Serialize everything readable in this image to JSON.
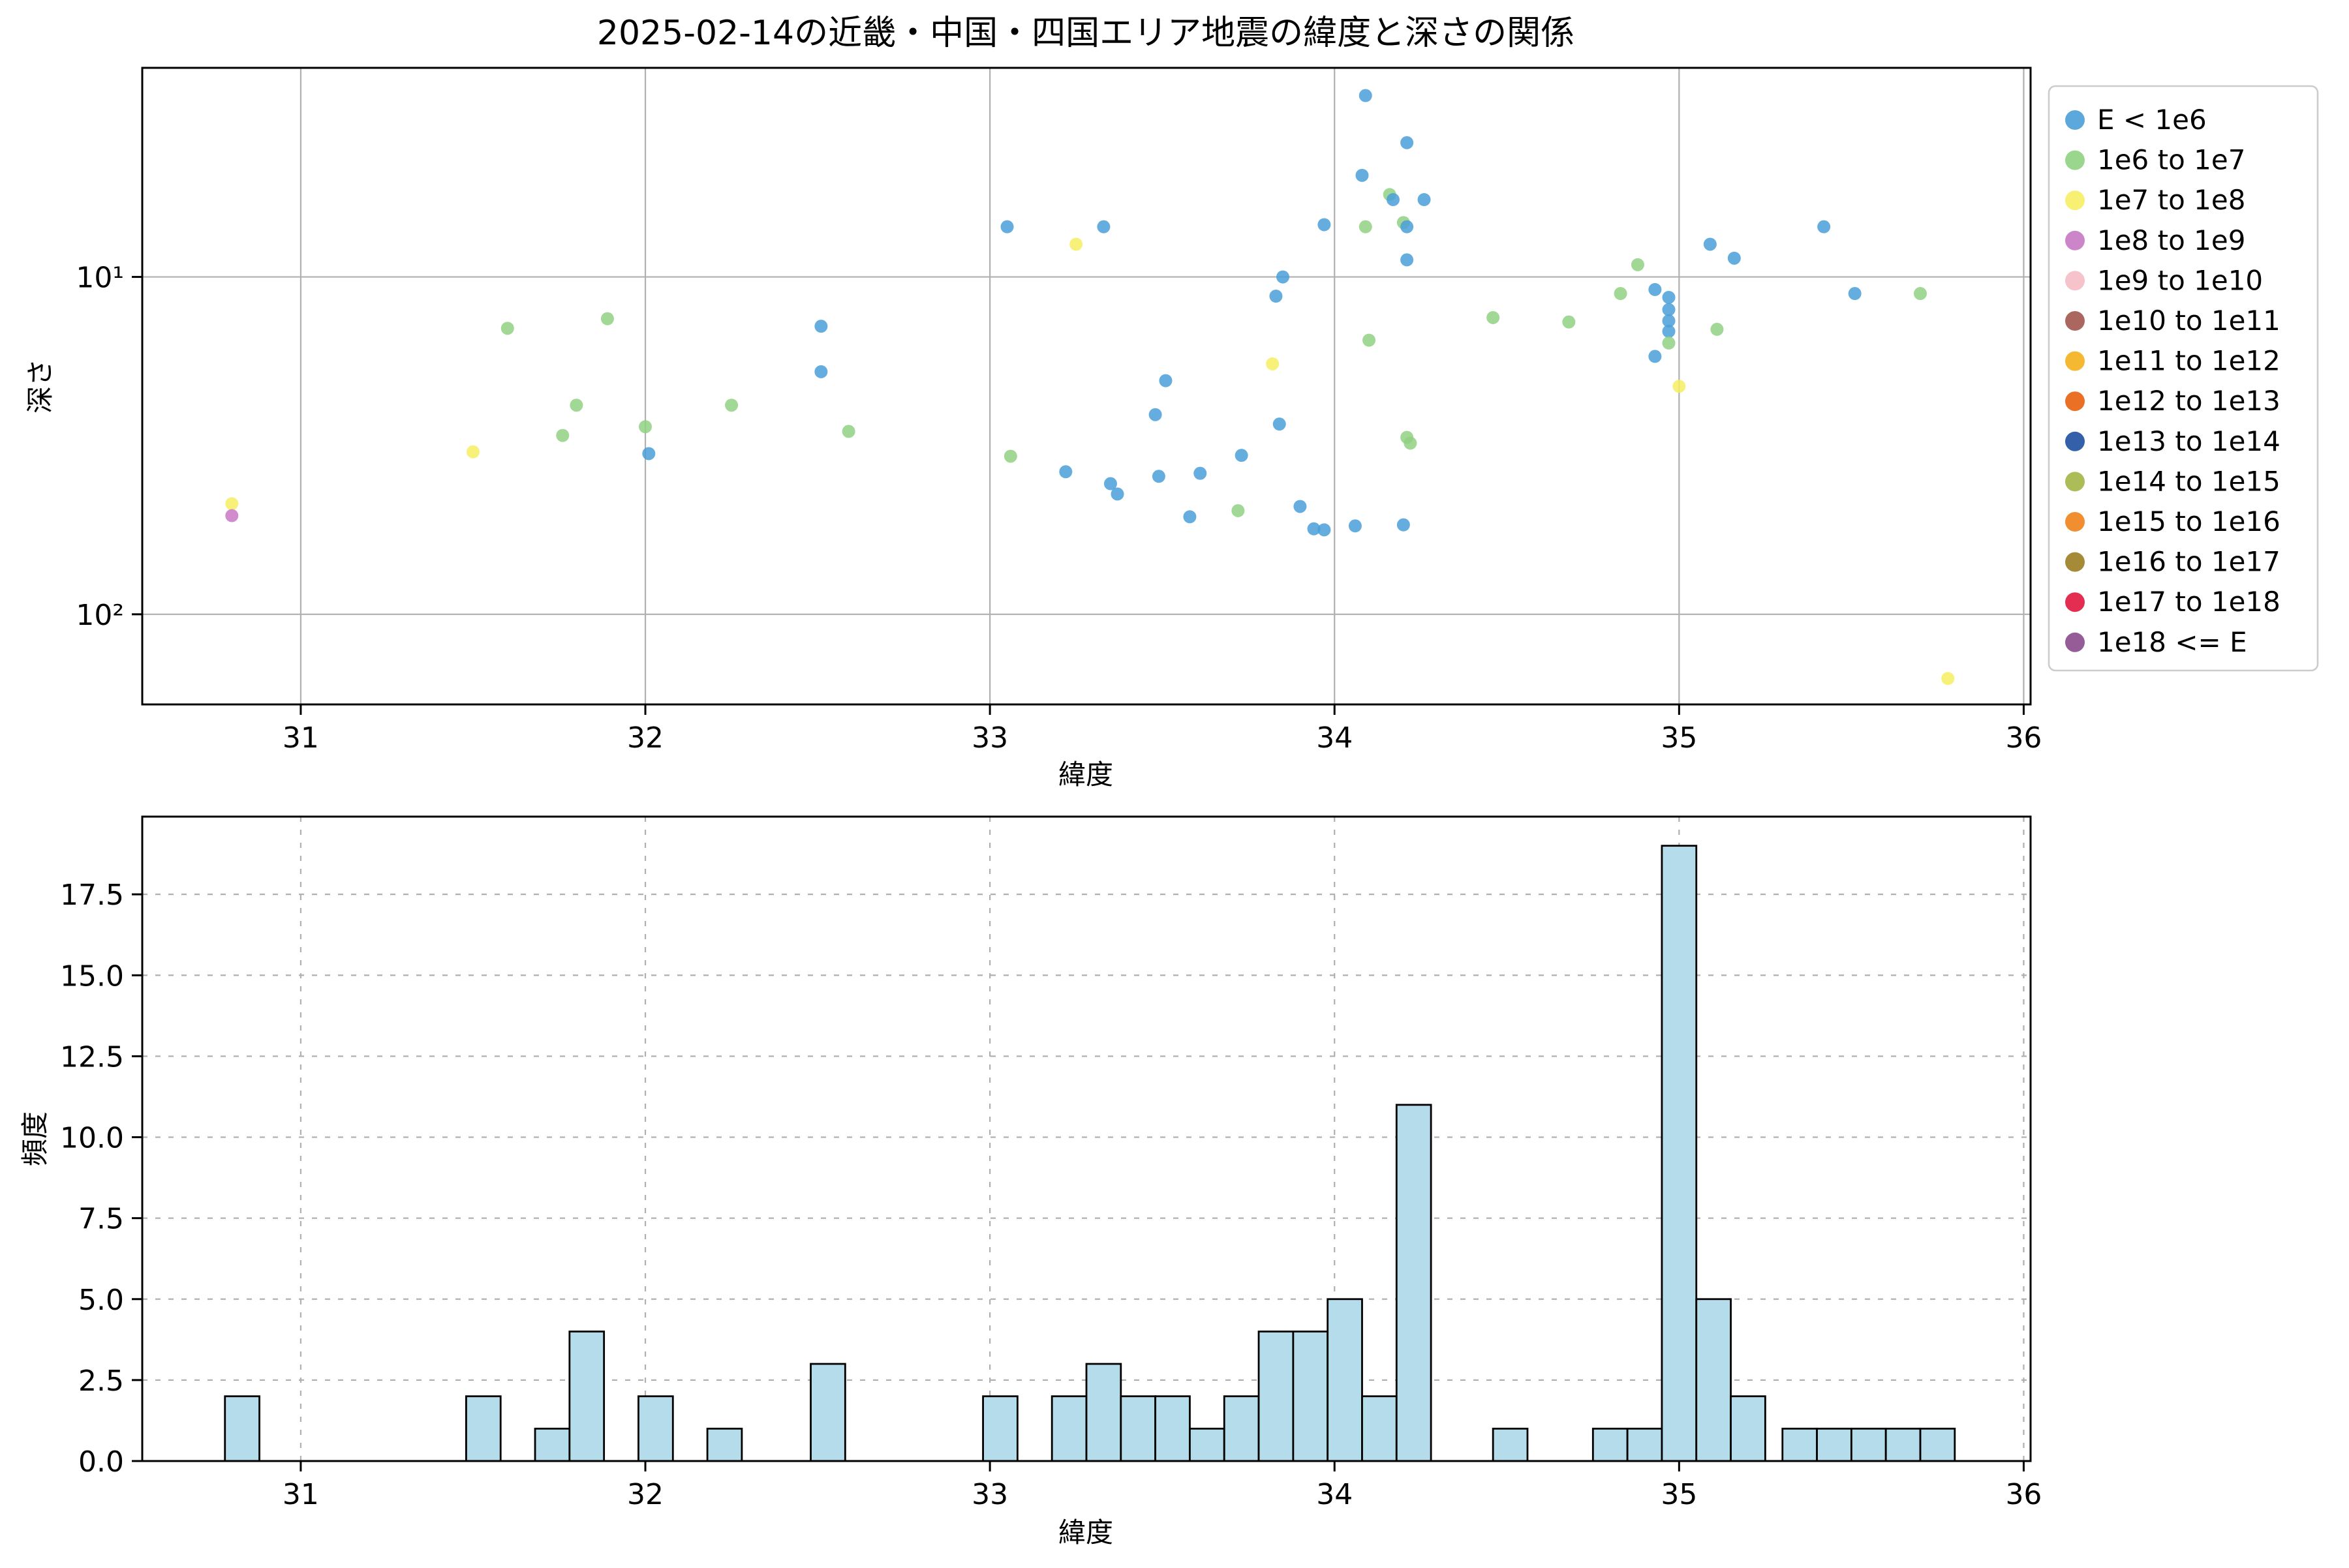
{
  "chart_data": [
    {
      "type": "scatter",
      "title": "2025-02-14の近畿・中国・四国エリア地震の緯度と深さの関係",
      "xlabel": "緯度",
      "ylabel": "深さ",
      "x_scale": "linear",
      "y_scale": "log_inverted",
      "xlim": [
        30.54,
        36.02
      ],
      "ylim": [
        2.4,
        185
      ],
      "x_ticks": [
        31,
        32,
        33,
        34,
        35,
        36
      ],
      "y_ticks": [
        {
          "value": 10,
          "label": "10¹"
        },
        {
          "value": 100,
          "label": "10²"
        }
      ],
      "grid": "solid",
      "legend_position": "upper right, outside axes",
      "categories": [
        {
          "label": "E < 1e6",
          "color": "#4a9fd8"
        },
        {
          "label": "1e6 to 1e7",
          "color": "#90d183"
        },
        {
          "label": "1e7 to 1e8",
          "color": "#f6ee63"
        },
        {
          "label": "1e8 to 1e9",
          "color": "#c878c4"
        },
        {
          "label": "1e9 to 1e10",
          "color": "#f5bcc4"
        },
        {
          "label": "1e10 to 1e11",
          "color": "#a2574e"
        },
        {
          "label": "1e11 to 1e12",
          "color": "#f3b01c"
        },
        {
          "label": "1e12 to 1e13",
          "color": "#e8610e"
        },
        {
          "label": "1e13 to 1e14",
          "color": "#1d4f9e"
        },
        {
          "label": "1e14 to 1e15",
          "color": "#a3b646"
        },
        {
          "label": "1e15 to 1e16",
          "color": "#ef8319"
        },
        {
          "label": "1e16 to 1e17",
          "color": "#9b7d22"
        },
        {
          "label": "1e17 to 1e18",
          "color": "#e0173f"
        },
        {
          "label": "1e18 <= E",
          "color": "#8a4a8d"
        }
      ],
      "points": [
        [
          30.8,
          47,
          2
        ],
        [
          30.8,
          51,
          3
        ],
        [
          31.5,
          33,
          2
        ],
        [
          31.6,
          14.2,
          1
        ],
        [
          31.76,
          29.5,
          1
        ],
        [
          31.8,
          24,
          1
        ],
        [
          31.89,
          13.3,
          1
        ],
        [
          32.0,
          27.8,
          1
        ],
        [
          32.01,
          33.4,
          0
        ],
        [
          32.25,
          24,
          1
        ],
        [
          32.51,
          14.0,
          0
        ],
        [
          32.51,
          19.1,
          0
        ],
        [
          32.59,
          28.7,
          1
        ],
        [
          33.05,
          7.1,
          0
        ],
        [
          33.06,
          34,
          1
        ],
        [
          33.22,
          37.8,
          0
        ],
        [
          33.25,
          8.0,
          2
        ],
        [
          33.33,
          7.1,
          0
        ],
        [
          33.35,
          41,
          0
        ],
        [
          33.37,
          44,
          0
        ],
        [
          33.48,
          25.6,
          0
        ],
        [
          33.49,
          39,
          0
        ],
        [
          33.51,
          20.3,
          0
        ],
        [
          33.58,
          51.4,
          0
        ],
        [
          33.61,
          38.2,
          0
        ],
        [
          33.72,
          49.3,
          1
        ],
        [
          33.73,
          33.8,
          0
        ],
        [
          33.82,
          18.1,
          2
        ],
        [
          33.83,
          11.4,
          0
        ],
        [
          33.84,
          27.3,
          0
        ],
        [
          33.85,
          10.0,
          0
        ],
        [
          33.9,
          47.9,
          0
        ],
        [
          33.94,
          55.8,
          0
        ],
        [
          33.97,
          56.2,
          0
        ],
        [
          33.97,
          7.0,
          0
        ],
        [
          34.06,
          54.7,
          0
        ],
        [
          34.08,
          5.0,
          0
        ],
        [
          34.09,
          2.9,
          0
        ],
        [
          34.09,
          7.1,
          1
        ],
        [
          34.1,
          15.4,
          1
        ],
        [
          34.16,
          5.7,
          1
        ],
        [
          34.17,
          5.9,
          0
        ],
        [
          34.2,
          6.9,
          1
        ],
        [
          34.21,
          4.0,
          0
        ],
        [
          34.21,
          7.1,
          0
        ],
        [
          34.21,
          8.9,
          0
        ],
        [
          34.21,
          29.9,
          1
        ],
        [
          34.22,
          31.1,
          1
        ],
        [
          34.2,
          54.3,
          0
        ],
        [
          34.26,
          5.9,
          0
        ],
        [
          34.46,
          13.2,
          1
        ],
        [
          34.68,
          13.6,
          1
        ],
        [
          34.83,
          11.2,
          1
        ],
        [
          34.88,
          9.2,
          1
        ],
        [
          34.93,
          10.9,
          0
        ],
        [
          34.93,
          17.2,
          0
        ],
        [
          34.97,
          11.5,
          0
        ],
        [
          34.97,
          12.5,
          0
        ],
        [
          34.97,
          13.5,
          0
        ],
        [
          34.97,
          14.5,
          0
        ],
        [
          34.97,
          15.7,
          1
        ],
        [
          35.0,
          21.1,
          2
        ],
        [
          35.09,
          8.0,
          0
        ],
        [
          35.11,
          14.3,
          1
        ],
        [
          35.16,
          8.8,
          0
        ],
        [
          35.42,
          7.1,
          0
        ],
        [
          35.51,
          11.2,
          0
        ],
        [
          35.7,
          11.2,
          1
        ],
        [
          35.78,
          155,
          2
        ]
      ]
    },
    {
      "type": "bar",
      "xlabel": "緯度",
      "ylabel": "頻度",
      "xlim": [
        30.54,
        36.02
      ],
      "ylim": [
        0,
        19.9
      ],
      "x_ticks": [
        31,
        32,
        33,
        34,
        35,
        36
      ],
      "y_ticks": [
        0,
        2.5,
        5,
        7.5,
        10,
        12.5,
        15,
        17.5
      ],
      "grid": "dashed",
      "bar_color": "#b5dcea",
      "bar_edge_color": "#000000",
      "bin_width": 0.1,
      "bars": [
        {
          "x": 30.78,
          "count": 2
        },
        {
          "x": 31.48,
          "count": 2
        },
        {
          "x": 31.68,
          "count": 1
        },
        {
          "x": 31.78,
          "count": 4
        },
        {
          "x": 31.98,
          "count": 2
        },
        {
          "x": 32.18,
          "count": 1
        },
        {
          "x": 32.48,
          "count": 3
        },
        {
          "x": 32.98,
          "count": 2
        },
        {
          "x": 33.18,
          "count": 2
        },
        {
          "x": 33.28,
          "count": 3
        },
        {
          "x": 33.38,
          "count": 2
        },
        {
          "x": 33.48,
          "count": 2
        },
        {
          "x": 33.58,
          "count": 1
        },
        {
          "x": 33.68,
          "count": 2
        },
        {
          "x": 33.78,
          "count": 4
        },
        {
          "x": 33.88,
          "count": 4
        },
        {
          "x": 33.98,
          "count": 5
        },
        {
          "x": 34.08,
          "count": 2
        },
        {
          "x": 34.18,
          "count": 11
        },
        {
          "x": 34.46,
          "count": 1
        },
        {
          "x": 34.75,
          "count": 1
        },
        {
          "x": 34.85,
          "count": 1
        },
        {
          "x": 34.95,
          "count": 19
        },
        {
          "x": 35.05,
          "count": 5
        },
        {
          "x": 35.15,
          "count": 2
        },
        {
          "x": 35.3,
          "count": 1
        },
        {
          "x": 35.4,
          "count": 1
        },
        {
          "x": 35.5,
          "count": 1
        },
        {
          "x": 35.6,
          "count": 1
        },
        {
          "x": 35.7,
          "count": 1
        }
      ]
    }
  ]
}
